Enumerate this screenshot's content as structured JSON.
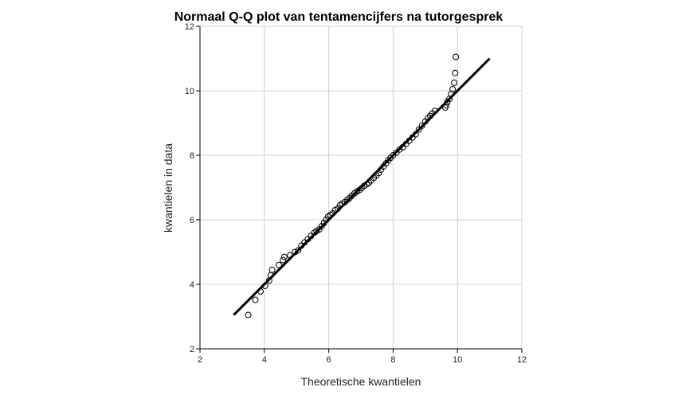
{
  "chart_data": {
    "type": "scatter",
    "title": "Normaal Q-Q plot van tentamencijfers na tutorgesprek",
    "xlabel": "Theoretische kwantielen",
    "ylabel": "kwantielen in data",
    "xlim": [
      2,
      12
    ],
    "ylim": [
      2,
      12
    ],
    "xticks": [
      2,
      4,
      6,
      8,
      10,
      12
    ],
    "yticks": [
      2,
      4,
      6,
      8,
      10,
      12
    ],
    "grid": true,
    "reference_line": {
      "x": [
        3.05,
        11.0
      ],
      "y": [
        3.05,
        11.0
      ]
    },
    "series": [
      {
        "points": [
          [
            3.5,
            3.05
          ],
          [
            3.72,
            3.52
          ],
          [
            3.88,
            3.78
          ],
          [
            4.02,
            3.95
          ],
          [
            4.15,
            4.12
          ],
          [
            4.2,
            4.28
          ],
          [
            4.24,
            4.45
          ],
          [
            4.45,
            4.6
          ],
          [
            4.58,
            4.75
          ],
          [
            4.62,
            4.85
          ],
          [
            4.8,
            4.9
          ],
          [
            4.95,
            5.0
          ],
          [
            5.05,
            5.05
          ],
          [
            5.15,
            5.2
          ],
          [
            5.25,
            5.3
          ],
          [
            5.35,
            5.4
          ],
          [
            5.45,
            5.5
          ],
          [
            5.55,
            5.6
          ],
          [
            5.62,
            5.65
          ],
          [
            5.7,
            5.7
          ],
          [
            5.78,
            5.8
          ],
          [
            5.85,
            5.9
          ],
          [
            5.92,
            6.0
          ],
          [
            5.98,
            6.1
          ],
          [
            6.05,
            6.15
          ],
          [
            6.12,
            6.2
          ],
          [
            6.2,
            6.3
          ],
          [
            6.28,
            6.35
          ],
          [
            6.35,
            6.45
          ],
          [
            6.42,
            6.5
          ],
          [
            6.5,
            6.55
          ],
          [
            6.58,
            6.62
          ],
          [
            6.65,
            6.68
          ],
          [
            6.72,
            6.75
          ],
          [
            6.8,
            6.82
          ],
          [
            6.88,
            6.88
          ],
          [
            6.95,
            6.92
          ],
          [
            7.02,
            6.98
          ],
          [
            7.1,
            7.05
          ],
          [
            7.18,
            7.1
          ],
          [
            7.25,
            7.15
          ],
          [
            7.32,
            7.22
          ],
          [
            7.4,
            7.3
          ],
          [
            7.48,
            7.38
          ],
          [
            7.55,
            7.45
          ],
          [
            7.62,
            7.55
          ],
          [
            7.7,
            7.65
          ],
          [
            7.78,
            7.75
          ],
          [
            7.85,
            7.85
          ],
          [
            7.92,
            7.92
          ],
          [
            8.0,
            8.0
          ],
          [
            8.1,
            8.08
          ],
          [
            8.2,
            8.18
          ],
          [
            8.3,
            8.25
          ],
          [
            8.4,
            8.35
          ],
          [
            8.5,
            8.45
          ],
          [
            8.6,
            8.55
          ],
          [
            8.7,
            8.65
          ],
          [
            8.8,
            8.8
          ],
          [
            8.9,
            8.92
          ],
          [
            9.0,
            9.05
          ],
          [
            9.08,
            9.15
          ],
          [
            9.15,
            9.22
          ],
          [
            9.22,
            9.3
          ],
          [
            9.3,
            9.38
          ],
          [
            9.62,
            9.48
          ],
          [
            9.65,
            9.55
          ],
          [
            9.68,
            9.65
          ],
          [
            9.75,
            9.75
          ],
          [
            9.8,
            9.9
          ],
          [
            9.85,
            10.05
          ],
          [
            9.9,
            10.25
          ],
          [
            9.93,
            10.55
          ],
          [
            9.95,
            11.05
          ]
        ]
      }
    ]
  }
}
